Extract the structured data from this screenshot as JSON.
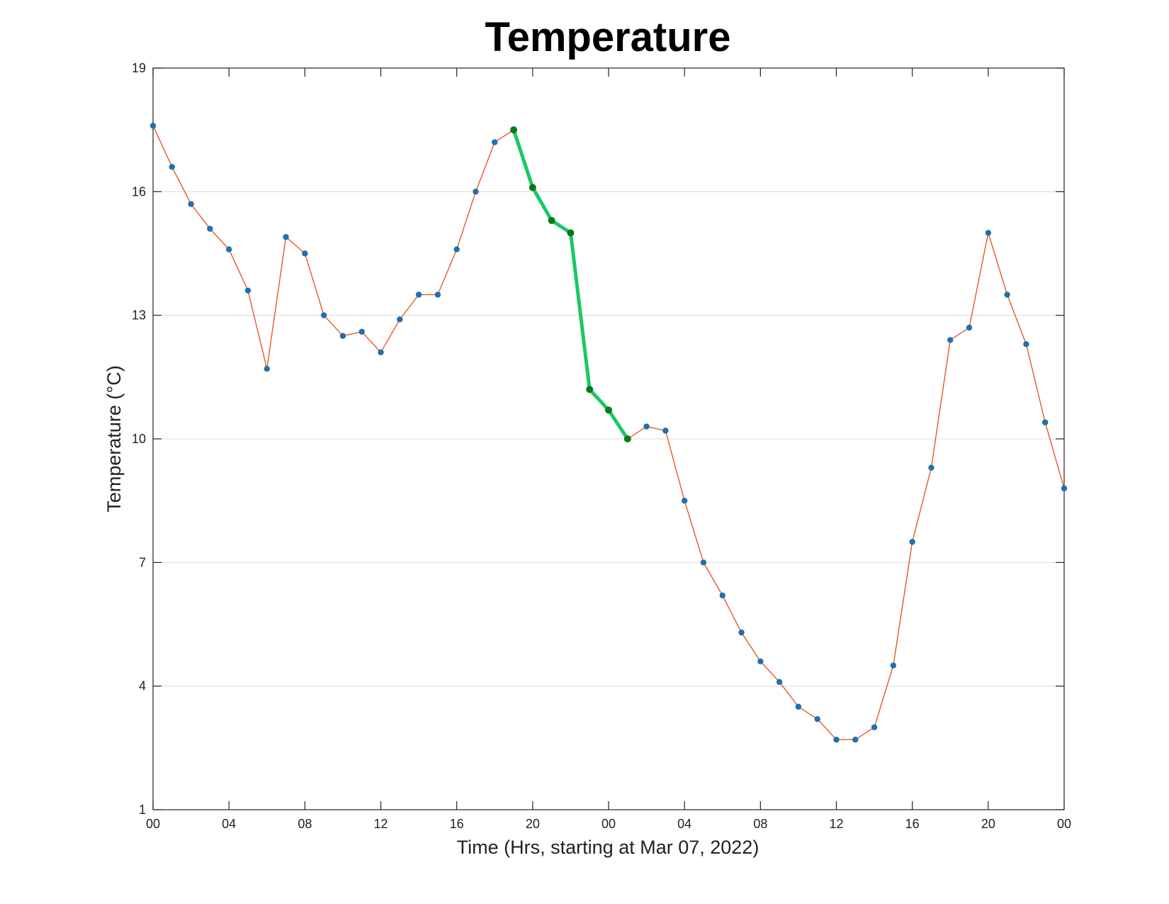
{
  "chart_data": {
    "type": "line",
    "title": "Temperature",
    "xlabel": "Time (Hrs, starting at Mar 07, 2022)",
    "ylabel": "Temperature (°C)",
    "x_unit": "hours",
    "xlim": [
      0,
      48
    ],
    "ylim": [
      1,
      19
    ],
    "yticks": [
      1,
      4,
      7,
      10,
      13,
      16,
      19
    ],
    "xtick_labels": [
      "00",
      "04",
      "08",
      "12",
      "16",
      "20",
      "00",
      "04",
      "08",
      "12",
      "16",
      "20",
      "00"
    ],
    "grid": "horizontal",
    "series": [
      {
        "values": [
          17.6,
          16.6,
          15.7,
          15.1,
          14.6,
          13.6,
          11.7,
          14.9,
          14.5,
          13.0,
          12.5,
          12.6,
          12.1,
          12.9,
          13.5,
          13.5,
          14.6,
          16.0,
          17.2,
          17.5,
          16.1,
          15.3,
          15.0,
          11.2,
          10.7,
          10.0,
          10.3,
          10.2,
          8.5,
          7.0,
          6.2,
          5.3,
          4.6,
          4.1,
          3.5,
          3.2,
          2.7,
          2.7,
          3.0,
          4.5,
          7.5,
          9.3,
          12.4,
          12.7,
          15.0,
          13.5,
          12.3,
          10.4,
          8.8
        ],
        "line_color": "#E8582A",
        "marker_color": "#1F6FB2"
      }
    ],
    "highlight": {
      "from_index": 19,
      "to_index": 25,
      "line_color": "#18C964",
      "marker_color": "#0B7A16"
    }
  }
}
